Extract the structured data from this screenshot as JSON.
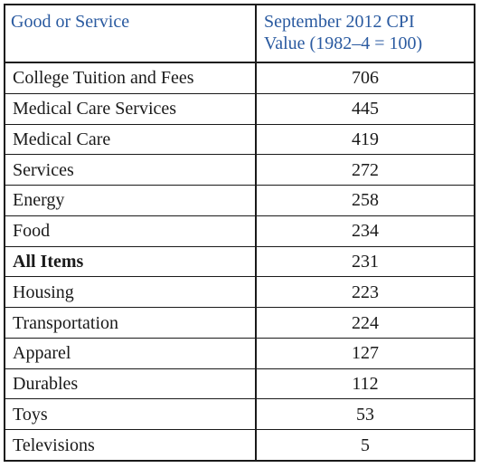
{
  "table": {
    "headers": {
      "good": "Good or Service",
      "cpi_line1": "September 2012 CPI",
      "cpi_line2": "Value (1982–4 = 100)"
    },
    "rows": [
      {
        "name": "College Tuition and Fees",
        "value": "706"
      },
      {
        "name": "Medical Care Services",
        "value": "445"
      },
      {
        "name": "Medical Care",
        "value": "419"
      },
      {
        "name": "Services",
        "value": "272"
      },
      {
        "name": "Energy",
        "value": "258"
      },
      {
        "name": "Food",
        "value": "234"
      },
      {
        "name": "All Items",
        "value": "231"
      },
      {
        "name": "Housing",
        "value": "223"
      },
      {
        "name": "Transportation",
        "value": "224"
      },
      {
        "name": "Apparel",
        "value": "127"
      },
      {
        "name": "Durables",
        "value": "112"
      },
      {
        "name": "Toys",
        "value": "53"
      },
      {
        "name": "Televisions",
        "value": "5"
      }
    ]
  }
}
